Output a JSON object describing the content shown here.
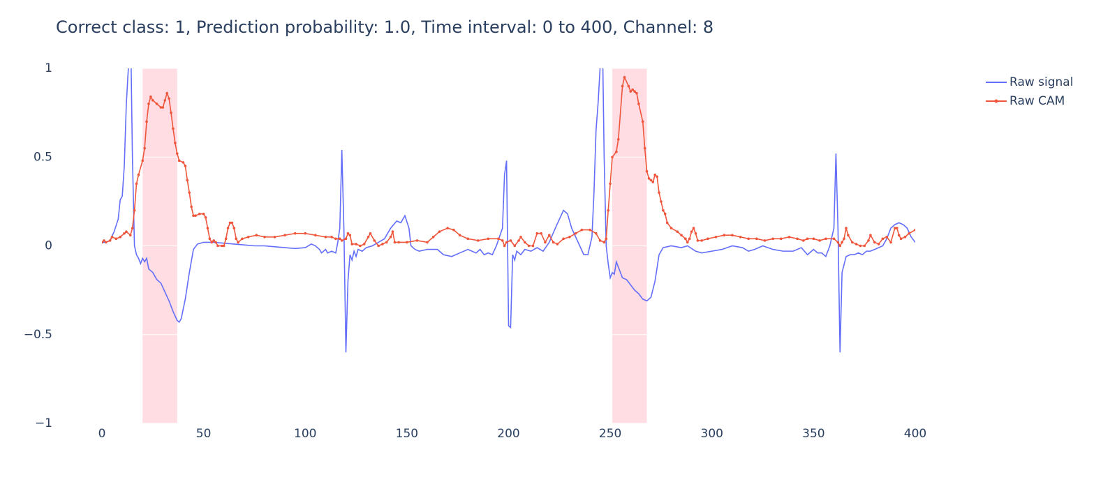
{
  "chart_data": {
    "type": "line",
    "title": "Correct class: 1, Prediction probability: 1.0, Time interval: 0 to 400, Channel: 8",
    "xlim": [
      0,
      400
    ],
    "ylim": [
      -1,
      1
    ],
    "xticks": [
      0,
      50,
      100,
      150,
      200,
      250,
      300,
      350,
      400
    ],
    "yticks": [
      1,
      0.5,
      0,
      {
        "value": -0.5,
        "label": "−0.5"
      },
      {
        "value": -1,
        "label": "−1"
      }
    ],
    "grid": true,
    "legend": "top-right",
    "shaded_intervals": [
      [
        20,
        37
      ],
      [
        251,
        268
      ]
    ],
    "shade_color": "#ffdde3",
    "series": [
      {
        "name": "Raw signal",
        "color": "#636efa",
        "markers": false,
        "x": [
          0,
          2,
          4,
          6,
          8,
          9,
          10,
          11,
          12,
          13,
          14,
          15,
          16,
          17,
          18,
          19,
          20,
          21,
          22,
          23,
          25,
          27,
          29,
          31,
          33,
          35,
          37,
          38,
          39,
          41,
          43,
          45,
          47,
          50,
          55,
          60,
          65,
          70,
          75,
          80,
          85,
          90,
          95,
          100,
          103,
          105,
          107,
          108,
          110,
          111,
          113,
          115,
          116,
          117,
          118,
          119,
          120,
          121,
          122,
          123,
          124,
          125,
          126,
          128,
          130,
          133,
          136,
          139,
          142,
          145,
          147,
          149,
          151,
          152,
          154,
          156,
          160,
          165,
          168,
          172,
          176,
          180,
          184,
          186,
          188,
          190,
          192,
          194,
          197,
          198,
          199,
          200,
          201,
          202,
          203,
          204,
          206,
          208,
          211,
          214,
          217,
          220,
          223,
          225,
          227,
          229,
          231,
          233,
          235,
          237,
          239,
          241,
          242,
          243,
          244,
          245,
          246,
          247,
          248,
          249,
          250,
          251,
          252,
          253,
          254,
          256,
          258,
          260,
          262,
          264,
          266,
          268,
          270,
          272,
          274,
          276,
          280,
          285,
          288,
          292,
          295,
          300,
          305,
          310,
          315,
          318,
          321,
          325,
          330,
          335,
          340,
          344,
          347,
          350,
          352,
          354,
          356,
          358,
          360,
          361,
          362,
          363,
          364,
          366,
          368,
          370,
          372,
          374,
          376,
          378,
          380,
          382,
          384,
          386,
          388,
          390,
          392,
          394,
          396,
          398,
          400
        ],
        "values": [
          0.02,
          0.02,
          0.03,
          0.08,
          0.15,
          0.26,
          0.28,
          0.45,
          0.8,
          1.0,
          1.3,
          0.5,
          0.0,
          -0.05,
          -0.07,
          -0.1,
          -0.07,
          -0.09,
          -0.07,
          -0.13,
          -0.15,
          -0.19,
          -0.21,
          -0.26,
          -0.31,
          -0.37,
          -0.42,
          -0.43,
          -0.41,
          -0.3,
          -0.15,
          -0.02,
          0.01,
          0.02,
          0.02,
          0.015,
          0.01,
          0.005,
          0.0,
          0.0,
          -0.005,
          -0.01,
          -0.015,
          -0.01,
          0.01,
          0.0,
          -0.02,
          -0.04,
          -0.02,
          -0.04,
          -0.03,
          -0.04,
          0.02,
          0.1,
          0.54,
          0.1,
          -0.6,
          -0.2,
          -0.05,
          -0.08,
          -0.03,
          -0.06,
          -0.02,
          -0.03,
          -0.01,
          0.0,
          0.02,
          0.04,
          0.1,
          0.14,
          0.13,
          0.17,
          0.1,
          0.0,
          -0.02,
          -0.03,
          -0.02,
          -0.02,
          -0.05,
          -0.06,
          -0.04,
          -0.02,
          -0.04,
          -0.02,
          -0.05,
          -0.04,
          -0.05,
          0.0,
          0.1,
          0.4,
          0.48,
          -0.45,
          -0.46,
          -0.05,
          -0.08,
          -0.03,
          -0.05,
          -0.02,
          -0.03,
          -0.01,
          -0.03,
          0.02,
          0.1,
          0.15,
          0.2,
          0.18,
          0.1,
          0.05,
          0.0,
          -0.05,
          -0.05,
          0.05,
          0.3,
          0.65,
          0.8,
          1.0,
          1.3,
          0.5,
          0.0,
          -0.1,
          -0.18,
          -0.15,
          -0.16,
          -0.09,
          -0.12,
          -0.18,
          -0.19,
          -0.22,
          -0.25,
          -0.27,
          -0.3,
          -0.31,
          -0.29,
          -0.2,
          -0.05,
          -0.01,
          0.0,
          -0.01,
          0.0,
          -0.03,
          -0.04,
          -0.03,
          -0.02,
          0.0,
          -0.01,
          -0.03,
          -0.02,
          0.0,
          -0.02,
          -0.03,
          -0.03,
          -0.01,
          -0.05,
          -0.02,
          -0.04,
          -0.04,
          -0.06,
          0.0,
          0.1,
          0.52,
          0.1,
          -0.6,
          -0.15,
          -0.06,
          -0.05,
          -0.05,
          -0.04,
          -0.05,
          -0.03,
          -0.03,
          -0.02,
          -0.01,
          0.0,
          0.04,
          0.1,
          0.12,
          0.13,
          0.12,
          0.1,
          0.05,
          0.02
        ]
      },
      {
        "name": "Raw CAM",
        "color": "#ef553b",
        "markers": true,
        "x": [
          0,
          1,
          2,
          4,
          5,
          7,
          9,
          11,
          12,
          14,
          15,
          16,
          17,
          18,
          20,
          21,
          22,
          23,
          24,
          25,
          27,
          29,
          30,
          31,
          32,
          33,
          34,
          35,
          36,
          37,
          38,
          40,
          41,
          42,
          43,
          44,
          45,
          46,
          48,
          50,
          51,
          52,
          53,
          54,
          55,
          56,
          57,
          59,
          60,
          61,
          62,
          63,
          64,
          65,
          66,
          67,
          69,
          72,
          76,
          80,
          85,
          90,
          95,
          100,
          105,
          110,
          113,
          115,
          117,
          118,
          120,
          121,
          122,
          123,
          125,
          127,
          129,
          131,
          132,
          134,
          136,
          138,
          140,
          142,
          143,
          144,
          146,
          150,
          155,
          160,
          163,
          166,
          170,
          173,
          176,
          180,
          185,
          190,
          195,
          197,
          198,
          199,
          201,
          203,
          205,
          206,
          208,
          210,
          212,
          214,
          216,
          218,
          220,
          222,
          224,
          227,
          230,
          233,
          236,
          240,
          243,
          245,
          247,
          248,
          249,
          250,
          251,
          253,
          254,
          256,
          257,
          259,
          260,
          261,
          262,
          263,
          264,
          266,
          267,
          268,
          269,
          270,
          271,
          272,
          273,
          274,
          275,
          276,
          277,
          278,
          280,
          283,
          285,
          287,
          288,
          289,
          290,
          291,
          292,
          293,
          295,
          298,
          302,
          306,
          310,
          314,
          318,
          322,
          326,
          330,
          334,
          338,
          342,
          345,
          347,
          350,
          353,
          356,
          360,
          362,
          363,
          364,
          365,
          366,
          367,
          369,
          371,
          373,
          375,
          377,
          378,
          380,
          382,
          384,
          386,
          388,
          390,
          391,
          392,
          393,
          395,
          397,
          400
        ],
        "values": [
          0.02,
          0.03,
          0.02,
          0.03,
          0.05,
          0.04,
          0.05,
          0.07,
          0.08,
          0.06,
          0.1,
          0.2,
          0.35,
          0.4,
          0.48,
          0.55,
          0.7,
          0.8,
          0.84,
          0.82,
          0.8,
          0.78,
          0.78,
          0.82,
          0.86,
          0.83,
          0.75,
          0.66,
          0.58,
          0.52,
          0.48,
          0.47,
          0.45,
          0.37,
          0.3,
          0.22,
          0.17,
          0.17,
          0.18,
          0.18,
          0.16,
          0.1,
          0.04,
          0.02,
          0.03,
          0.02,
          0.0,
          0.0,
          0.0,
          0.04,
          0.1,
          0.13,
          0.13,
          0.1,
          0.04,
          0.02,
          0.04,
          0.05,
          0.06,
          0.05,
          0.05,
          0.06,
          0.07,
          0.07,
          0.06,
          0.05,
          0.05,
          0.04,
          0.04,
          0.03,
          0.04,
          0.07,
          0.06,
          0.01,
          0.01,
          0.0,
          0.01,
          0.05,
          0.07,
          0.03,
          0.0,
          0.01,
          0.02,
          0.05,
          0.08,
          0.02,
          0.02,
          0.02,
          0.03,
          0.02,
          0.05,
          0.08,
          0.1,
          0.09,
          0.06,
          0.04,
          0.03,
          0.04,
          0.04,
          0.03,
          0.0,
          0.02,
          0.03,
          0.0,
          0.03,
          0.05,
          0.02,
          0.0,
          0.0,
          0.07,
          0.07,
          0.02,
          0.06,
          0.02,
          0.01,
          0.04,
          0.05,
          0.07,
          0.09,
          0.09,
          0.07,
          0.03,
          0.02,
          0.04,
          0.2,
          0.35,
          0.5,
          0.53,
          0.6,
          0.9,
          0.95,
          0.9,
          0.87,
          0.88,
          0.87,
          0.86,
          0.8,
          0.7,
          0.55,
          0.42,
          0.38,
          0.37,
          0.36,
          0.4,
          0.39,
          0.3,
          0.25,
          0.2,
          0.18,
          0.13,
          0.1,
          0.08,
          0.06,
          0.04,
          0.02,
          0.04,
          0.08,
          0.1,
          0.07,
          0.03,
          0.03,
          0.04,
          0.05,
          0.06,
          0.06,
          0.05,
          0.04,
          0.04,
          0.03,
          0.04,
          0.04,
          0.05,
          0.04,
          0.03,
          0.04,
          0.04,
          0.03,
          0.04,
          0.04,
          0.02,
          0.0,
          0.02,
          0.04,
          0.1,
          0.06,
          0.02,
          0.01,
          0.0,
          0.0,
          0.03,
          0.06,
          0.02,
          0.01,
          0.04,
          0.05,
          0.02,
          0.1,
          0.1,
          0.06,
          0.04,
          0.05,
          0.07,
          0.09
        ]
      }
    ]
  }
}
